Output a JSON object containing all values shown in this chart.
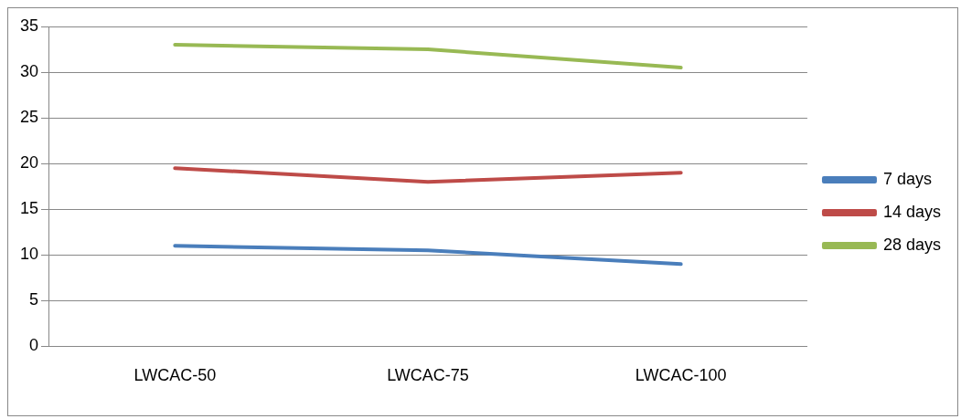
{
  "chart_data": {
    "type": "line",
    "categories": [
      "LWCAC-50",
      "LWCAC-75",
      "LWCAC-100"
    ],
    "series": [
      {
        "name": "7 days",
        "color": "#4a7ebb",
        "values": [
          11,
          10.5,
          9
        ]
      },
      {
        "name": "14 days",
        "color": "#be4b48",
        "values": [
          19.5,
          18,
          19
        ]
      },
      {
        "name": "28 days",
        "color": "#98b954",
        "values": [
          33,
          32.5,
          30.5
        ]
      }
    ],
    "ylim": [
      0,
      35
    ],
    "yticks": [
      0,
      5,
      10,
      15,
      20,
      25,
      30,
      35
    ],
    "grid": "y",
    "legend": "right",
    "marker": "none"
  }
}
